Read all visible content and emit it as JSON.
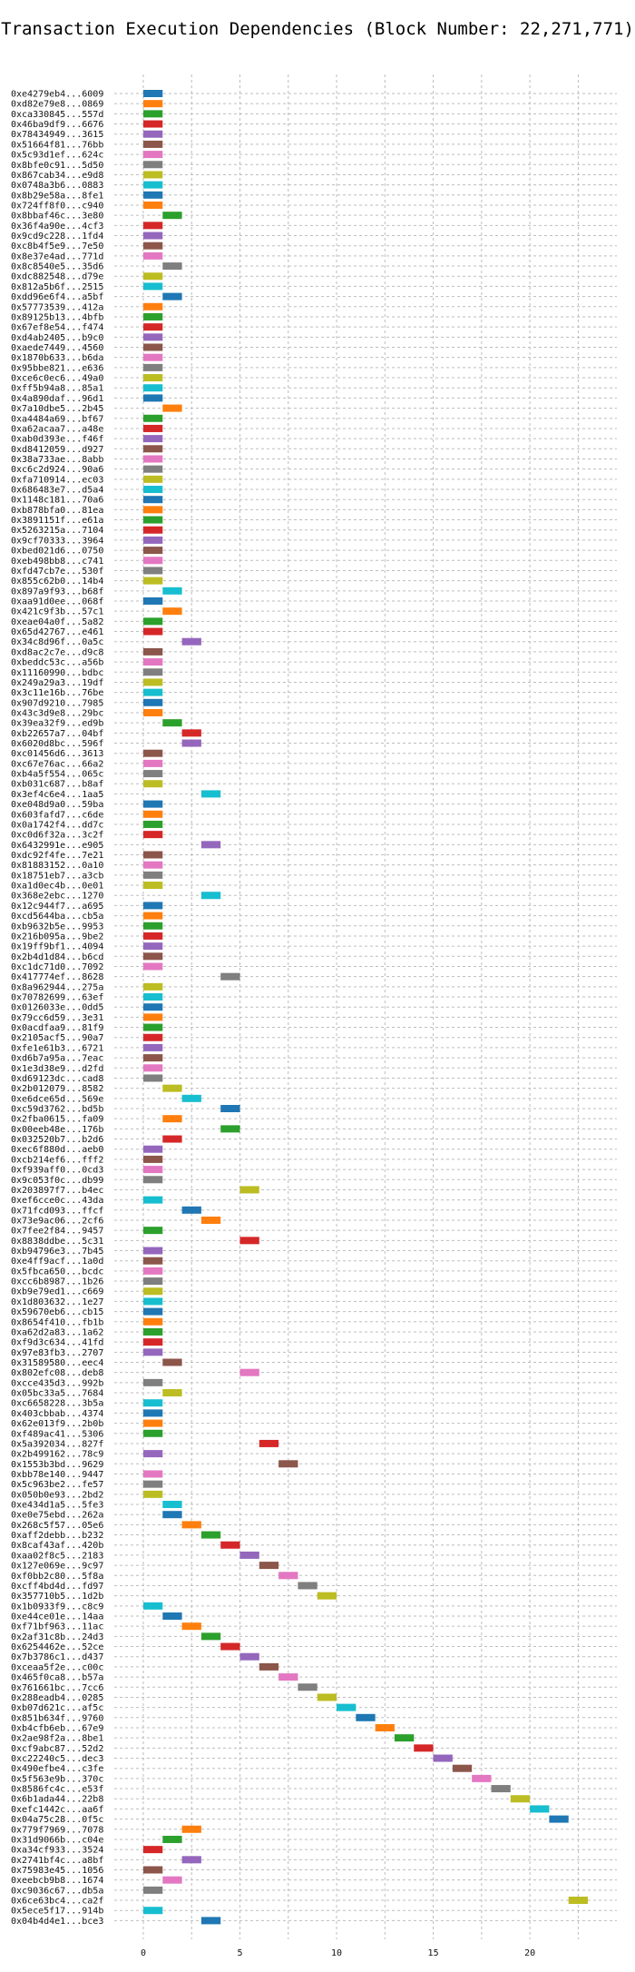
{
  "chart_data": {
    "type": "gantt",
    "title": "Transaction Execution Dependencies (Block Number: 22,271,771)",
    "xlabel": "",
    "ylabel": "",
    "xlim": [
      -1.5,
      24.5
    ],
    "x_ticks": [
      0,
      5,
      10,
      15,
      20
    ],
    "grid": true,
    "colors": {
      "blue": "#1f77b4",
      "orange": "#ff7f0e",
      "green": "#2ca02c",
      "red": "#d62728",
      "purple": "#9467bd",
      "brown": "#8c564b",
      "pink": "#e377c2",
      "gray": "#7f7f7f",
      "olive": "#bcbd22",
      "cyan": "#17becf"
    },
    "color_cycle": [
      "blue",
      "orange",
      "green",
      "red",
      "purple",
      "brown",
      "pink",
      "gray",
      "olive",
      "cyan"
    ],
    "bar_length": 1,
    "transactions": [
      {
        "label": "0xe4279eb4...6009",
        "start": 0
      },
      {
        "label": "0xd82e79e8...0869",
        "start": 0
      },
      {
        "label": "0xca330845...557d",
        "start": 0
      },
      {
        "label": "0x46ba9df9...6676",
        "start": 0
      },
      {
        "label": "0x78434949...3615",
        "start": 0
      },
      {
        "label": "0x51664f81...76bb",
        "start": 0
      },
      {
        "label": "0x5c93d1ef...624c",
        "start": 0
      },
      {
        "label": "0x8bfe0c91...5d50",
        "start": 0
      },
      {
        "label": "0x867cab34...e9d8",
        "start": 0
      },
      {
        "label": "0x0748a3b6...0883",
        "start": 0
      },
      {
        "label": "0x8b29e58a...8fe1",
        "start": 0
      },
      {
        "label": "0x724ff8f0...c940",
        "start": 0
      },
      {
        "label": "0x8bbaf46c...3e80",
        "start": 1
      },
      {
        "label": "0x36f4a90e...4cf3",
        "start": 0
      },
      {
        "label": "0x9cd9c228...1fd4",
        "start": 0
      },
      {
        "label": "0xc8b4f5e9...7e50",
        "start": 0
      },
      {
        "label": "0x8e37e4ad...771d",
        "start": 0
      },
      {
        "label": "0x8c8540e5...35d6",
        "start": 1
      },
      {
        "label": "0xdc882548...d79e",
        "start": 0
      },
      {
        "label": "0x812a5b6f...2515",
        "start": 0
      },
      {
        "label": "0xdd96e6f4...a5bf",
        "start": 1
      },
      {
        "label": "0x57773539...412a",
        "start": 0
      },
      {
        "label": "0x89125b13...4bfb",
        "start": 0
      },
      {
        "label": "0x67ef8e54...f474",
        "start": 0
      },
      {
        "label": "0xd4ab2405...b9c0",
        "start": 0
      },
      {
        "label": "0xaede7449...4560",
        "start": 0
      },
      {
        "label": "0x1870b633...b6da",
        "start": 0
      },
      {
        "label": "0x95bbe821...e636",
        "start": 0
      },
      {
        "label": "0xce6c0ec6...49a0",
        "start": 0
      },
      {
        "label": "0xff5b94a8...85a1",
        "start": 0
      },
      {
        "label": "0x4a890daf...96d1",
        "start": 0
      },
      {
        "label": "0x7a10dbe5...2b45",
        "start": 1
      },
      {
        "label": "0xa4484a69...bf67",
        "start": 0
      },
      {
        "label": "0xa62acaa7...a48e",
        "start": 0
      },
      {
        "label": "0xab0d393e...f46f",
        "start": 0
      },
      {
        "label": "0xd8412059...d927",
        "start": 0
      },
      {
        "label": "0x38a733ae...8abb",
        "start": 0
      },
      {
        "label": "0xc6c2d924...90a6",
        "start": 0
      },
      {
        "label": "0xfa710914...ec03",
        "start": 0
      },
      {
        "label": "0x686483e7...d5a4",
        "start": 0
      },
      {
        "label": "0x1148c181...70a6",
        "start": 0
      },
      {
        "label": "0xb878bfa0...81ea",
        "start": 0
      },
      {
        "label": "0x3891151f...e61a",
        "start": 0
      },
      {
        "label": "0x5263215a...7104",
        "start": 0
      },
      {
        "label": "0x9cf70333...3964",
        "start": 0
      },
      {
        "label": "0xbed021d6...0750",
        "start": 0
      },
      {
        "label": "0xeb498bb8...c741",
        "start": 0
      },
      {
        "label": "0xfd47cb7e...530f",
        "start": 0
      },
      {
        "label": "0x855c62b0...14b4",
        "start": 0
      },
      {
        "label": "0x897a9f93...b68f",
        "start": 1
      },
      {
        "label": "0xaa91d0ee...068f",
        "start": 0
      },
      {
        "label": "0x421c9f3b...57c1",
        "start": 1
      },
      {
        "label": "0xeae04a0f...5a82",
        "start": 0
      },
      {
        "label": "0x65d42767...e461",
        "start": 0
      },
      {
        "label": "0x34c8d96f...0a5c",
        "start": 2
      },
      {
        "label": "0xd8ac2c7e...d9c8",
        "start": 0
      },
      {
        "label": "0xbeddc53c...a56b",
        "start": 0
      },
      {
        "label": "0x11160990...bdbc",
        "start": 0
      },
      {
        "label": "0x249a29a3...19df",
        "start": 0
      },
      {
        "label": "0x3c11e16b...76be",
        "start": 0
      },
      {
        "label": "0x907d9210...7985",
        "start": 0
      },
      {
        "label": "0x43c3d9e8...29bc",
        "start": 0
      },
      {
        "label": "0x39ea32f9...ed9b",
        "start": 1
      },
      {
        "label": "0xb22657a7...04bf",
        "start": 2
      },
      {
        "label": "0x6020d8bc...596f",
        "start": 2
      },
      {
        "label": "0xc01456d6...3613",
        "start": 0
      },
      {
        "label": "0xc67e76ac...66a2",
        "start": 0
      },
      {
        "label": "0xb4a5f554...065c",
        "start": 0
      },
      {
        "label": "0xb031c687...b8af",
        "start": 0
      },
      {
        "label": "0x3ef4c6e4...1aa5",
        "start": 3
      },
      {
        "label": "0xe048d9a0...59ba",
        "start": 0
      },
      {
        "label": "0x603fafd7...c6de",
        "start": 0
      },
      {
        "label": "0x0a1742f4...dd7c",
        "start": 0
      },
      {
        "label": "0xc0d6f32a...3c2f",
        "start": 0
      },
      {
        "label": "0x6432991e...e905",
        "start": 3
      },
      {
        "label": "0xdc92f4fe...7e21",
        "start": 0
      },
      {
        "label": "0x81883152...0a10",
        "start": 0
      },
      {
        "label": "0x18751eb7...a3cb",
        "start": 0
      },
      {
        "label": "0xa1d0ec4b...0e01",
        "start": 0
      },
      {
        "label": "0x368e2ebc...1270",
        "start": 3
      },
      {
        "label": "0x12c944f7...a695",
        "start": 0
      },
      {
        "label": "0xcd5644ba...cb5a",
        "start": 0
      },
      {
        "label": "0xb9632b5e...9953",
        "start": 0
      },
      {
        "label": "0x216b095a...9be2",
        "start": 0
      },
      {
        "label": "0x19ff9bf1...4094",
        "start": 0
      },
      {
        "label": "0x2b4d1d84...b6cd",
        "start": 0
      },
      {
        "label": "0xc1dc71d0...7092",
        "start": 0
      },
      {
        "label": "0x417774ef...8628",
        "start": 4
      },
      {
        "label": "0x8a962944...275a",
        "start": 0
      },
      {
        "label": "0x70782699...63ef",
        "start": 0
      },
      {
        "label": "0x0126033e...0dd5",
        "start": 0
      },
      {
        "label": "0x79cc6d59...3e31",
        "start": 0
      },
      {
        "label": "0x0acdfaa9...81f9",
        "start": 0
      },
      {
        "label": "0x2105acf5...90a7",
        "start": 0
      },
      {
        "label": "0xfe1e61b3...6721",
        "start": 0
      },
      {
        "label": "0xd6b7a95a...7eac",
        "start": 0
      },
      {
        "label": "0x1e3d38e9...d2fd",
        "start": 0
      },
      {
        "label": "0xd69123dc...cad8",
        "start": 0
      },
      {
        "label": "0x2b012079...8582",
        "start": 1
      },
      {
        "label": "0xe6dce65d...569e",
        "start": 2
      },
      {
        "label": "0xc59d3762...bd5b",
        "start": 4
      },
      {
        "label": "0x2fba0615...fa09",
        "start": 1
      },
      {
        "label": "0x00eeb48e...176b",
        "start": 4
      },
      {
        "label": "0x032520b7...b2d6",
        "start": 1
      },
      {
        "label": "0xec6f880d...aeb0",
        "start": 0
      },
      {
        "label": "0xcb214ef6...fff2",
        "start": 0
      },
      {
        "label": "0xf939aff0...0cd3",
        "start": 0
      },
      {
        "label": "0x9c053f0c...db99",
        "start": 0
      },
      {
        "label": "0x203897f7...b4ec",
        "start": 5
      },
      {
        "label": "0xef6cce0c...43da",
        "start": 0
      },
      {
        "label": "0x71fcd093...ffcf",
        "start": 2
      },
      {
        "label": "0x73e9ac06...2cf6",
        "start": 3
      },
      {
        "label": "0x7fee2f84...9457",
        "start": 0
      },
      {
        "label": "0x8838ddbe...5c31",
        "start": 5
      },
      {
        "label": "0xb94796e3...7b45",
        "start": 0
      },
      {
        "label": "0xe4ff9acf...1a0d",
        "start": 0
      },
      {
        "label": "0x5fbca650...bcdc",
        "start": 0
      },
      {
        "label": "0xcc6b8987...1b26",
        "start": 0
      },
      {
        "label": "0xb9e79ed1...c669",
        "start": 0
      },
      {
        "label": "0x1d803632...1e27",
        "start": 0
      },
      {
        "label": "0x59670eb6...cb15",
        "start": 0
      },
      {
        "label": "0x8654f410...fb1b",
        "start": 0
      },
      {
        "label": "0xa62d2a83...1a62",
        "start": 0
      },
      {
        "label": "0xf9d3c634...41fd",
        "start": 0
      },
      {
        "label": "0x97e83fb3...2707",
        "start": 0
      },
      {
        "label": "0x31589580...eec4",
        "start": 1
      },
      {
        "label": "0x802efc08...deb8",
        "start": 5
      },
      {
        "label": "0xcce435d3...992b",
        "start": 0
      },
      {
        "label": "0x05bc33a5...7684",
        "start": 1
      },
      {
        "label": "0xc6658228...3b5a",
        "start": 0
      },
      {
        "label": "0x403cbbab...4374",
        "start": 0
      },
      {
        "label": "0x62e013f9...2b0b",
        "start": 0
      },
      {
        "label": "0xf489ac41...5306",
        "start": 0
      },
      {
        "label": "0x5a392034...827f",
        "start": 6
      },
      {
        "label": "0x2b499162...78c9",
        "start": 0
      },
      {
        "label": "0x1553b3bd...9629",
        "start": 7
      },
      {
        "label": "0xbb78e140...9447",
        "start": 0
      },
      {
        "label": "0x5c963be2...fe57",
        "start": 0
      },
      {
        "label": "0x050b0e93...2bd2",
        "start": 0
      },
      {
        "label": "0xe434d1a5...5fe3",
        "start": 1
      },
      {
        "label": "0xe0e75ebd...262a",
        "start": 1
      },
      {
        "label": "0x268c5f57...05e6",
        "start": 2
      },
      {
        "label": "0xaff2debb...b232",
        "start": 3
      },
      {
        "label": "0x8caf43af...420b",
        "start": 4
      },
      {
        "label": "0xaa02f8c5...2183",
        "start": 5
      },
      {
        "label": "0x127e069e...9c97",
        "start": 6
      },
      {
        "label": "0xf0bb2c80...5f8a",
        "start": 7
      },
      {
        "label": "0xcff4bd4d...fd97",
        "start": 8
      },
      {
        "label": "0x357710b5...1d2b",
        "start": 9
      },
      {
        "label": "0x1b0933f9...c8c9",
        "start": 0
      },
      {
        "label": "0xe44ce01e...14aa",
        "start": 1
      },
      {
        "label": "0xf71bf963...11ac",
        "start": 2
      },
      {
        "label": "0x2af31c8b...24d3",
        "start": 3
      },
      {
        "label": "0x6254462e...52ce",
        "start": 4
      },
      {
        "label": "0x7b3786c1...d437",
        "start": 5
      },
      {
        "label": "0xceaa5f2e...c00c",
        "start": 6
      },
      {
        "label": "0x465f0ca8...b57a",
        "start": 7
      },
      {
        "label": "0x761661bc...7cc6",
        "start": 8
      },
      {
        "label": "0x288eadb4...0285",
        "start": 9
      },
      {
        "label": "0xb07d621c...af5c",
        "start": 10
      },
      {
        "label": "0x851b634f...9760",
        "start": 11
      },
      {
        "label": "0xb4cfb6eb...67e9",
        "start": 12
      },
      {
        "label": "0x2ae98f2a...8be1",
        "start": 13
      },
      {
        "label": "0xcf9abc87...52d2",
        "start": 14
      },
      {
        "label": "0xc22240c5...dec3",
        "start": 15
      },
      {
        "label": "0x490efbe4...c3fe",
        "start": 16
      },
      {
        "label": "0x5f563e9b...370c",
        "start": 17
      },
      {
        "label": "0x8586fc4c...e53f",
        "start": 18
      },
      {
        "label": "0x6b1ada44...22b8",
        "start": 19
      },
      {
        "label": "0xefc1442c...aa6f",
        "start": 20
      },
      {
        "label": "0x04a75c28...0f5c",
        "start": 21
      },
      {
        "label": "0x779f7969...7078",
        "start": 2
      },
      {
        "label": "0x31d9066b...c04e",
        "start": 1
      },
      {
        "label": "0xa34cf933...3524",
        "start": 0
      },
      {
        "label": "0x2741bf4c...a8bf",
        "start": 2
      },
      {
        "label": "0x75983e45...1056",
        "start": 0
      },
      {
        "label": "0xeebcb9b8...1674",
        "start": 1
      },
      {
        "label": "0xc9036c67...db5a",
        "start": 0
      },
      {
        "label": "0x6ce63bc4...ca2f",
        "start": 22
      },
      {
        "label": "0x5ece5f17...914b",
        "start": 0
      },
      {
        "label": "0x04b4d4e1...bce3",
        "start": 3
      }
    ]
  }
}
